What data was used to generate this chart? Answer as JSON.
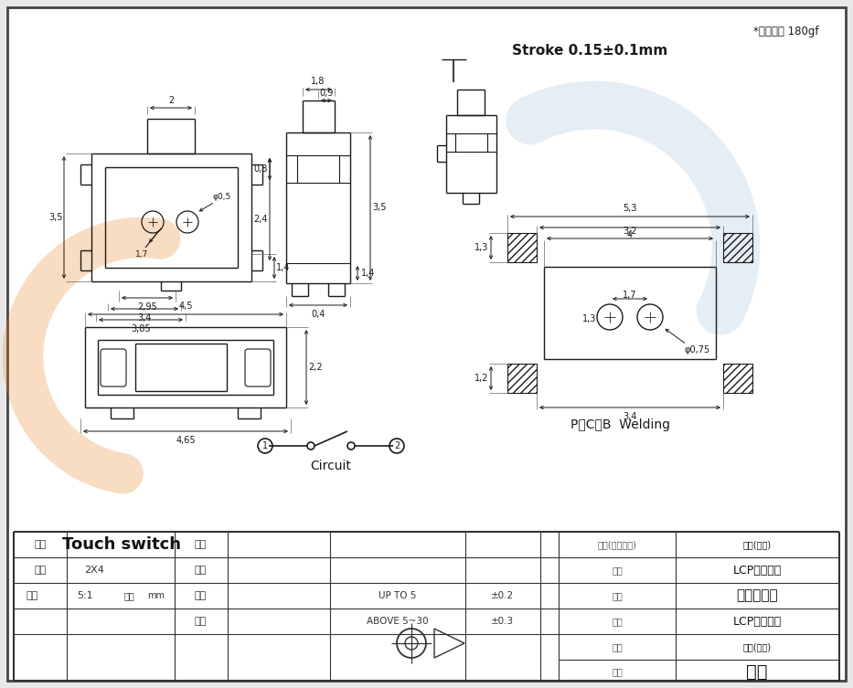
{
  "bg_color": "#ffffff",
  "line_color": "#1a1a1a",
  "dim_color": "#1a1a1a",
  "title_text": "*操作力： 180gf",
  "stroke_text": "Stroke 0.15±0.1mm",
  "circuit_text": "Circuit",
  "pcb_text": "P．C．B  Welding",
  "table_name_label": "名称",
  "table_name_value": "Touch switch",
  "table_type_label": "型号",
  "table_type_value": "2X4",
  "table_ratio_label": "比例",
  "table_ratio_value": "5:1",
  "table_unit_label": "单位",
  "table_unit_value": "mm",
  "table_design_label": "设计",
  "table_make_label": "制造",
  "table_review_label": "审核",
  "table_date_label": "日期",
  "table_upto5": "UP TO 5",
  "table_above530": "ABOVE 5~30",
  "table_tol1": "±0.2",
  "table_tol2": "±0.3",
  "mat_terminal_label": "端子(注塑部件)",
  "mat_terminal_value": "黄铜(镨銀)",
  "mat_base_label": "基座",
  "mat_base_value": "LCP（白色）",
  "mat_spring_label": "弹片",
  "mat_spring_value": "不锈锤复銀",
  "mat_push_label": "推柄",
  "mat_push_value": "LCP（黑色）",
  "mat_cap_label": "盖子",
  "mat_cap_value": "黄铜(镨銀)",
  "mat_parts_label": "零件",
  "mat_parts_value": "材料",
  "wm_orange": "#e8882a",
  "wm_blue": "#8aafd4"
}
